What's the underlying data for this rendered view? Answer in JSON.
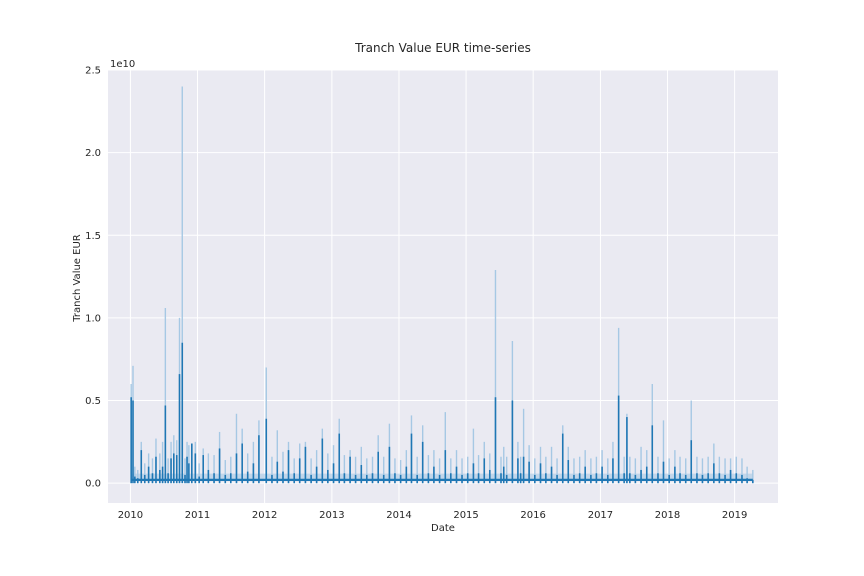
{
  "chart_data": {
    "type": "line",
    "title": "Tranch Value EUR time-series",
    "xlabel": "Date",
    "ylabel": "Tranch Value EUR",
    "y_offset_label": "1e10",
    "x_range": [
      "2009-09-01",
      "2019-08-25"
    ],
    "ylim": [
      -1200000000.0,
      25000000000.0
    ],
    "grid": true,
    "x_ticks": [
      "2010",
      "2011",
      "2012",
      "2013",
      "2014",
      "2015",
      "2016",
      "2017",
      "2018",
      "2019"
    ],
    "y_ticks": [
      "0.0",
      "0.5",
      "1.0",
      "1.5",
      "2.0",
      "2.5"
    ],
    "y_tick_values": [
      0,
      5000000000.0,
      10000000000.0,
      15000000000.0,
      20000000000.0,
      25000000000.0
    ],
    "colors": {
      "line": "#1f77b4",
      "band": "#a6c8e4",
      "background": "#eaeaf2",
      "grid": "#ffffff"
    },
    "series": [
      {
        "x": [
          "2010-01-05",
          "2010-01-15",
          "2010-01-25",
          "2010-02-10",
          "2010-03-01",
          "2010-03-20",
          "2010-04-10",
          "2010-05-01",
          "2010-05-20",
          "2010-06-10",
          "2010-06-25",
          "2010-07-10",
          "2010-07-25",
          "2010-08-10",
          "2010-08-25",
          "2010-09-10",
          "2010-09-25",
          "2010-10-10",
          "2010-10-25",
          "2010-11-05",
          "2010-11-15",
          "2010-12-01",
          "2010-12-20",
          "2011-01-10",
          "2011-02-01",
          "2011-03-01",
          "2011-04-01",
          "2011-05-01",
          "2011-06-01",
          "2011-07-01",
          "2011-08-01",
          "2011-09-01",
          "2011-10-01",
          "2011-11-01",
          "2011-12-01",
          "2012-01-10",
          "2012-02-10",
          "2012-03-10",
          "2012-04-10",
          "2012-05-10",
          "2012-06-10",
          "2012-07-10",
          "2012-08-10",
          "2012-09-10",
          "2012-10-10",
          "2012-11-10",
          "2012-12-10",
          "2013-01-10",
          "2013-02-10",
          "2013-03-10",
          "2013-04-10",
          "2013-05-10",
          "2013-06-10",
          "2013-07-10",
          "2013-08-10",
          "2013-09-10",
          "2013-10-10",
          "2013-11-10",
          "2013-12-10",
          "2014-01-10",
          "2014-02-10",
          "2014-03-10",
          "2014-04-10",
          "2014-05-10",
          "2014-06-10",
          "2014-07-10",
          "2014-08-10",
          "2014-09-10",
          "2014-10-10",
          "2014-11-10",
          "2014-12-10",
          "2015-01-10",
          "2015-02-10",
          "2015-03-10",
          "2015-04-10",
          "2015-05-10",
          "2015-06-10",
          "2015-07-10",
          "2015-07-25",
          "2015-08-10",
          "2015-09-10",
          "2015-10-10",
          "2015-10-25",
          "2015-11-10",
          "2015-12-10",
          "2016-01-10",
          "2016-02-10",
          "2016-03-10",
          "2016-04-10",
          "2016-05-10",
          "2016-06-10",
          "2016-07-10",
          "2016-08-10",
          "2016-09-10",
          "2016-10-10",
          "2016-11-10",
          "2016-12-10",
          "2017-01-10",
          "2017-02-10",
          "2017-03-10",
          "2017-04-10",
          "2017-05-10",
          "2017-05-25",
          "2017-06-10",
          "2017-07-10",
          "2017-08-10",
          "2017-09-10",
          "2017-10-10",
          "2017-11-10",
          "2017-12-10",
          "2018-01-10",
          "2018-02-10",
          "2018-03-10",
          "2018-04-10",
          "2018-05-10",
          "2018-06-10",
          "2018-07-10",
          "2018-08-10",
          "2018-09-10",
          "2018-10-10",
          "2018-11-10",
          "2018-12-10",
          "2019-01-10",
          "2019-02-10",
          "2019-03-10",
          "2019-04-10"
        ],
        "mean": [
          5200000000.0,
          5000000000.0,
          400000000.0,
          300000000.0,
          2000000000.0,
          500000000.0,
          1000000000.0,
          600000000.0,
          1600000000.0,
          800000000.0,
          1000000000.0,
          4700000000.0,
          600000000.0,
          1500000000.0,
          1800000000.0,
          1700000000.0,
          6600000000.0,
          8500000000.0,
          500000000.0,
          1600000000.0,
          1200000000.0,
          2400000000.0,
          1800000000.0,
          400000000.0,
          1700000000.0,
          800000000.0,
          600000000.0,
          2100000000.0,
          500000000.0,
          600000000.0,
          1800000000.0,
          2400000000.0,
          700000000.0,
          1200000000.0,
          2900000000.0,
          3900000000.0,
          500000000.0,
          1300000000.0,
          700000000.0,
          2000000000.0,
          600000000.0,
          1500000000.0,
          2200000000.0,
          500000000.0,
          1000000000.0,
          2700000000.0,
          800000000.0,
          1200000000.0,
          3000000000.0,
          600000000.0,
          1600000000.0,
          500000000.0,
          1100000000.0,
          500000000.0,
          600000000.0,
          1900000000.0,
          500000000.0,
          2200000000.0,
          600000000.0,
          500000000.0,
          1000000000.0,
          3000000000.0,
          500000000.0,
          2500000000.0,
          600000000.0,
          1000000000.0,
          500000000.0,
          2000000000.0,
          600000000.0,
          1000000000.0,
          500000000.0,
          600000000.0,
          1200000000.0,
          600000000.0,
          1500000000.0,
          800000000.0,
          5200000000.0,
          600000000.0,
          1000000000.0,
          500000000.0,
          5000000000.0,
          1500000000.0,
          600000000.0,
          1600000000.0,
          1300000000.0,
          500000000.0,
          1200000000.0,
          600000000.0,
          1000000000.0,
          500000000.0,
          3000000000.0,
          1400000000.0,
          500000000.0,
          600000000.0,
          1000000000.0,
          500000000.0,
          600000000.0,
          1000000000.0,
          500000000.0,
          1500000000.0,
          5300000000.0,
          600000000.0,
          4000000000.0,
          600000000.0,
          500000000.0,
          800000000.0,
          1000000000.0,
          3500000000.0,
          600000000.0,
          1300000000.0,
          500000000.0,
          1000000000.0,
          600000000.0,
          500000000.0,
          2600000000.0,
          600000000.0,
          500000000.0,
          600000000.0,
          1200000000.0,
          600000000.0,
          500000000.0,
          800000000.0,
          600000000.0,
          500000000.0,
          300000000.0,
          200000000.0
        ],
        "upper": [
          6000000000.0,
          7100000000.0,
          1000000000.0,
          800000000.0,
          2500000000.0,
          1200000000.0,
          1800000000.0,
          1500000000.0,
          2700000000.0,
          1800000000.0,
          2500000000.0,
          10600000000.0,
          1500000000.0,
          2500000000.0,
          2900000000.0,
          2600000000.0,
          10000000000.0,
          24000000000.0,
          1500000000.0,
          2500000000.0,
          2300000000.0,
          2400000000.0,
          2500000000.0,
          1200000000.0,
          2100000000.0,
          1800000000.0,
          1700000000.0,
          3100000000.0,
          1400000000.0,
          1600000000.0,
          4200000000.0,
          3300000000.0,
          1800000000.0,
          2500000000.0,
          3800000000.0,
          7000000000.0,
          1600000000.0,
          3200000000.0,
          1900000000.0,
          2500000000.0,
          1500000000.0,
          2400000000.0,
          2500000000.0,
          1500000000.0,
          2000000000.0,
          3300000000.0,
          1800000000.0,
          2300000000.0,
          3900000000.0,
          1700000000.0,
          2000000000.0,
          1600000000.0,
          2200000000.0,
          1500000000.0,
          1600000000.0,
          2900000000.0,
          1600000000.0,
          3600000000.0,
          1500000000.0,
          1400000000.0,
          2000000000.0,
          4100000000.0,
          1600000000.0,
          3500000000.0,
          1700000000.0,
          2000000000.0,
          1500000000.0,
          4300000000.0,
          1500000000.0,
          2000000000.0,
          1500000000.0,
          1600000000.0,
          3300000000.0,
          1700000000.0,
          2500000000.0,
          1800000000.0,
          12900000000.0,
          1600000000.0,
          2200000000.0,
          1600000000.0,
          8600000000.0,
          2500000000.0,
          1600000000.0,
          4500000000.0,
          2300000000.0,
          1500000000.0,
          2200000000.0,
          1600000000.0,
          2200000000.0,
          1500000000.0,
          3500000000.0,
          2200000000.0,
          1500000000.0,
          1600000000.0,
          2000000000.0,
          1500000000.0,
          1600000000.0,
          2000000000.0,
          1500000000.0,
          2500000000.0,
          9400000000.0,
          1600000000.0,
          4200000000.0,
          1600000000.0,
          1500000000.0,
          2200000000.0,
          2000000000.0,
          6000000000.0,
          1600000000.0,
          3800000000.0,
          1500000000.0,
          2000000000.0,
          1600000000.0,
          1500000000.0,
          5000000000.0,
          1600000000.0,
          1500000000.0,
          1600000000.0,
          2400000000.0,
          1600000000.0,
          1500000000.0,
          1500000000.0,
          1600000000.0,
          1500000000.0,
          1000000000.0,
          800000000.0
        ]
      }
    ]
  }
}
